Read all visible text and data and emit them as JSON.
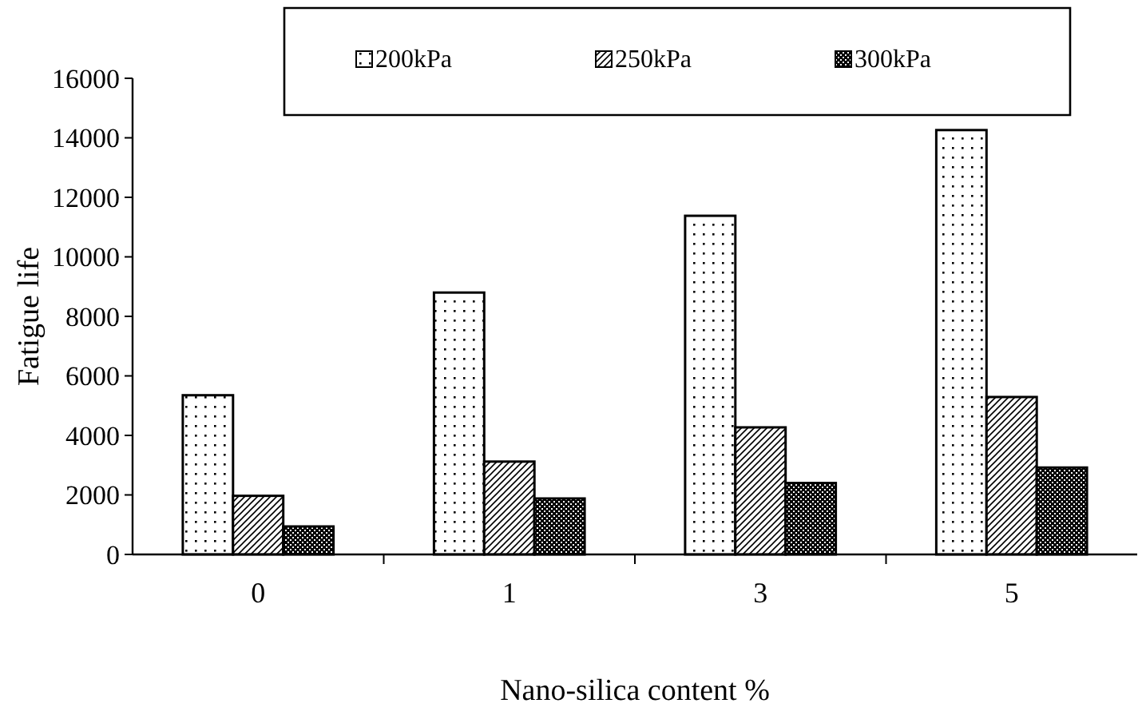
{
  "chart_data": {
    "type": "bar",
    "xlabel": "Nano-silica content %",
    "ylabel": "Fatigue life",
    "categories": [
      "0",
      "1",
      "3",
      "5"
    ],
    "series": [
      {
        "name": "200kPa",
        "color": "#000000",
        "values": [
          5350,
          8800,
          11380,
          14260
        ]
      },
      {
        "name": "250kPa",
        "color": "#000000",
        "values": [
          1970,
          3120,
          4270,
          5290
        ]
      },
      {
        "name": "300kPa",
        "color": "#000000",
        "values": [
          940,
          1880,
          2400,
          2920
        ]
      }
    ],
    "ylim": [
      0,
      16000
    ],
    "yticks": [
      0,
      2000,
      4000,
      6000,
      8000,
      10000,
      12000,
      14000,
      16000
    ],
    "grid": false,
    "legend": "top"
  }
}
